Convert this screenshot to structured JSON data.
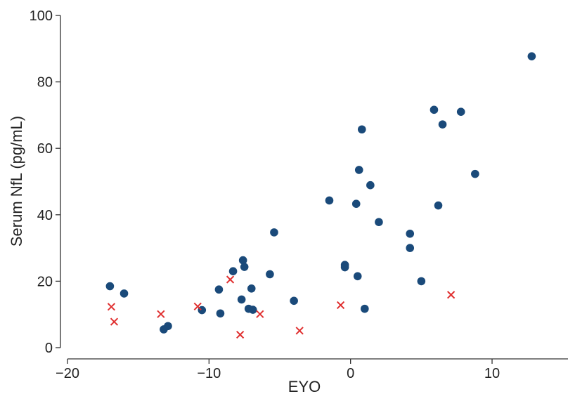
{
  "chart_data": {
    "type": "scatter",
    "xlabel": "EYO",
    "ylabel": "Serum NfL (pg/mL)",
    "xlim": [
      -20,
      15
    ],
    "ylim": [
      0,
      100
    ],
    "xticks": [
      -20,
      -10,
      0,
      10
    ],
    "yticks": [
      0,
      20,
      40,
      60,
      80,
      100
    ],
    "grid": false,
    "xtick_labels": [
      "−20",
      "−10",
      "0",
      "10"
    ],
    "ytick_labels": [
      "0",
      "20",
      "40",
      "60",
      "80",
      "100"
    ],
    "series": [
      {
        "marker": "circle",
        "color": "#1a4a7a",
        "points": [
          [
            -17.0,
            18.5
          ],
          [
            -16.0,
            16.3
          ],
          [
            -13.2,
            5.5
          ],
          [
            -12.9,
            6.5
          ],
          [
            -10.5,
            11.3
          ],
          [
            -9.3,
            17.5
          ],
          [
            -9.2,
            10.3
          ],
          [
            -8.3,
            23.0
          ],
          [
            -7.7,
            14.5
          ],
          [
            -7.6,
            26.3
          ],
          [
            -7.5,
            24.3
          ],
          [
            -7.2,
            11.7
          ],
          [
            -7.0,
            17.8
          ],
          [
            -6.9,
            11.4
          ],
          [
            -5.7,
            22.1
          ],
          [
            -5.4,
            34.7
          ],
          [
            -4.0,
            14.1
          ],
          [
            -1.5,
            44.3
          ],
          [
            -0.4,
            24.9
          ],
          [
            -0.4,
            24.2
          ],
          [
            0.4,
            43.3
          ],
          [
            0.5,
            21.5
          ],
          [
            0.6,
            53.5
          ],
          [
            0.8,
            65.7
          ],
          [
            1.0,
            11.7
          ],
          [
            1.4,
            48.9
          ],
          [
            2.0,
            37.8
          ],
          [
            4.2,
            34.3
          ],
          [
            4.2,
            30.0
          ],
          [
            5.0,
            20.0
          ],
          [
            5.9,
            71.6
          ],
          [
            6.2,
            42.8
          ],
          [
            6.5,
            67.2
          ],
          [
            7.8,
            71.0
          ],
          [
            8.8,
            52.3
          ],
          [
            12.8,
            87.7
          ]
        ]
      },
      {
        "marker": "x",
        "color": "#e03030",
        "points": [
          [
            -16.9,
            12.3
          ],
          [
            -16.7,
            7.8
          ],
          [
            -13.4,
            10.1
          ],
          [
            -10.8,
            12.4
          ],
          [
            -8.5,
            20.5
          ],
          [
            -7.8,
            3.9
          ],
          [
            -6.4,
            10.1
          ],
          [
            -3.6,
            5.1
          ],
          [
            -0.7,
            12.8
          ],
          [
            7.1,
            15.9
          ]
        ]
      }
    ]
  }
}
